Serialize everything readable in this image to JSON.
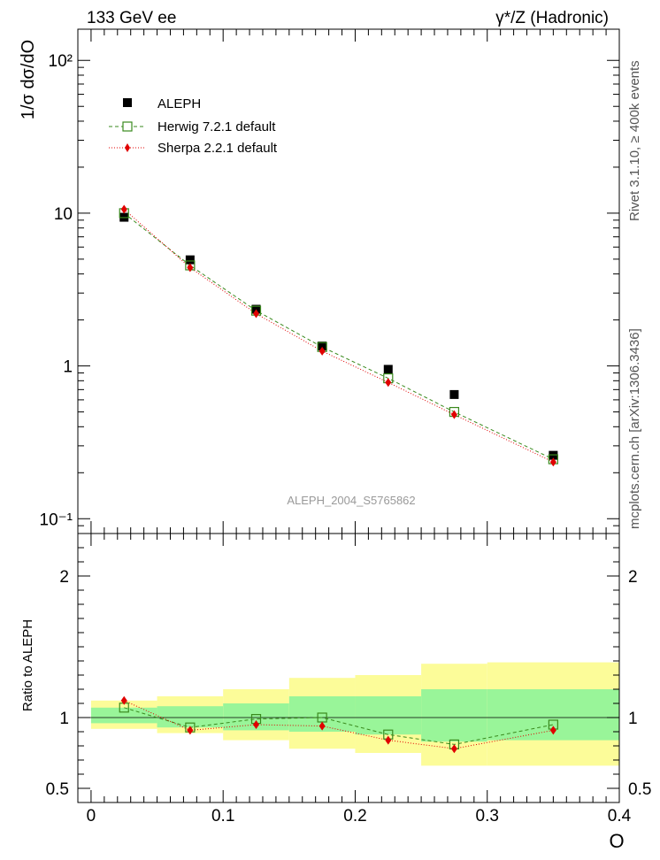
{
  "header": {
    "energy_label": "133 GeV ee",
    "process_label": "γ*/Z (Hadronic)"
  },
  "side_labels": {
    "rivet": "Rivet 3.1.10, ≥ 400k events",
    "mcplots": "mcplots.cern.ch [arXiv:1306.3436]"
  },
  "chart_data": [
    {
      "type": "scatter",
      "ylabel": "1/σ dσ/dO",
      "xlabel": "O",
      "yscale": "log",
      "ylim": [
        0.08,
        160
      ],
      "xlim": [
        -0.01,
        0.4
      ],
      "y_tick_labels": [
        "10⁻¹",
        "1",
        "10",
        "10²"
      ],
      "watermark": "ALEPH_2004_S5765862",
      "legend_position": "top-left",
      "x": [
        0.025,
        0.075,
        0.125,
        0.175,
        0.225,
        0.275,
        0.35
      ],
      "series": [
        {
          "name": "ALEPH",
          "color": "#000000",
          "marker": "square-filled",
          "values": [
            9.4,
            4.95,
            2.35,
            1.35,
            0.95,
            0.65,
            0.26
          ]
        },
        {
          "name": "Herwig 7.2.1 default",
          "color": "#3a8a1e",
          "marker": "square-open",
          "line": "dashed",
          "values": [
            10.0,
            4.55,
            2.3,
            1.33,
            0.83,
            0.5,
            0.245
          ]
        },
        {
          "name": "Sherpa 2.2.1 default",
          "color": "#e00000",
          "marker": "diamond-filled",
          "line": "dotted",
          "values": [
            10.6,
            4.4,
            2.2,
            1.25,
            0.78,
            0.48,
            0.235
          ]
        }
      ]
    },
    {
      "type": "line",
      "ylabel": "Ratio to ALEPH",
      "xlabel": "O",
      "ylim": [
        0.4,
        2.3
      ],
      "xlim": [
        -0.01,
        0.4
      ],
      "y_ticks": [
        0.5,
        1,
        2
      ],
      "y_tick_labels": [
        "0.5",
        "1",
        "2"
      ],
      "x_ticks": [
        0,
        0.1,
        0.2,
        0.3,
        0.4
      ],
      "x_tick_labels": [
        "0",
        "0.1",
        "0.2",
        "0.3",
        "0.4"
      ],
      "bins": [
        [
          0.0,
          0.05
        ],
        [
          0.05,
          0.1
        ],
        [
          0.1,
          0.15
        ],
        [
          0.15,
          0.2
        ],
        [
          0.2,
          0.25
        ],
        [
          0.25,
          0.3
        ],
        [
          0.3,
          0.4
        ]
      ],
      "band_inner": [
        [
          0.96,
          1.07
        ],
        [
          0.93,
          1.08
        ],
        [
          0.91,
          1.1
        ],
        [
          0.9,
          1.15
        ],
        [
          0.88,
          1.15
        ],
        [
          0.83,
          1.2
        ],
        [
          0.84,
          1.2
        ]
      ],
      "band_outer": [
        [
          0.92,
          1.12
        ],
        [
          0.89,
          1.15
        ],
        [
          0.84,
          1.2
        ],
        [
          0.78,
          1.28
        ],
        [
          0.75,
          1.3
        ],
        [
          0.66,
          1.38
        ],
        [
          0.66,
          1.39
        ]
      ],
      "band_inner_color": "#99f599",
      "band_outer_color": "#fcfc99",
      "x": [
        0.025,
        0.075,
        0.125,
        0.175,
        0.225,
        0.275,
        0.35
      ],
      "series": [
        {
          "name": "Herwig 7.2.1 default",
          "color": "#3a8a1e",
          "marker": "square-open",
          "line": "dashed",
          "values": [
            1.07,
            0.93,
            0.99,
            1.0,
            0.88,
            0.81,
            0.95
          ]
        },
        {
          "name": "Sherpa 2.2.1 default",
          "color": "#e00000",
          "marker": "diamond-filled",
          "line": "dotted",
          "values": [
            1.12,
            0.91,
            0.95,
            0.94,
            0.84,
            0.78,
            0.91
          ]
        }
      ]
    }
  ]
}
